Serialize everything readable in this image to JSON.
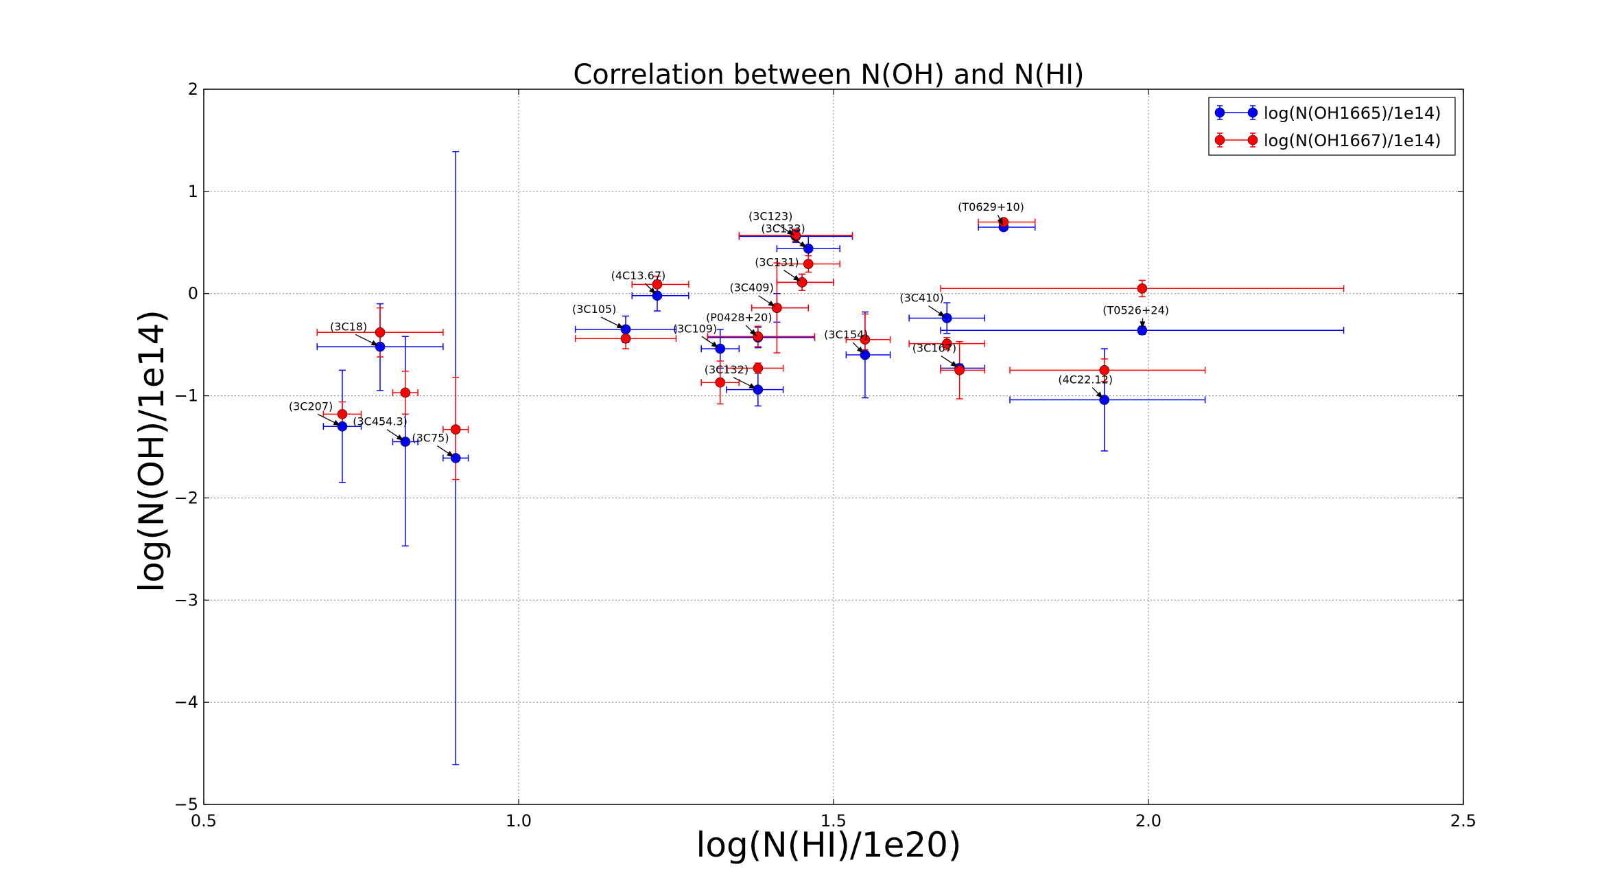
{
  "chart_data": {
    "type": "scatter",
    "title": "Correlation between N(OH) and N(HI)",
    "xlabel": "log(N(HI)/1e20)",
    "ylabel": "log(N(OH)/1e14)",
    "xlim": [
      0.5,
      2.5
    ],
    "ylim": [
      -5,
      2
    ],
    "xticks": [
      0.5,
      1.0,
      1.5,
      2.0,
      2.5
    ],
    "xtick_labels": [
      "0.5",
      "1.0",
      "1.5",
      "2.0",
      "2.5"
    ],
    "yticks": [
      2,
      1,
      0,
      -1,
      -2,
      -3,
      -4,
      -5
    ],
    "ytick_labels": [
      "2",
      "1",
      "0",
      "−1",
      "−2",
      "−3",
      "−4",
      "−5"
    ],
    "grid": true,
    "legend_position": "top-right",
    "series": [
      {
        "name": "log(N(OH1665)/1e14)",
        "color": "#0000ff",
        "points": [
          {
            "x": 0.72,
            "y": -1.3,
            "xlo": 0.69,
            "xhi": 0.75,
            "ylo": -1.85,
            "yhi": -0.75
          },
          {
            "x": 0.78,
            "y": -0.52,
            "xlo": 0.68,
            "xhi": 0.88,
            "ylo": -0.95,
            "yhi": -0.1
          },
          {
            "x": 0.82,
            "y": -1.45,
            "xlo": 0.8,
            "xhi": 0.84,
            "ylo": -2.47,
            "yhi": -0.42
          },
          {
            "x": 0.9,
            "y": -1.61,
            "xlo": 0.88,
            "xhi": 0.92,
            "ylo": -4.61,
            "yhi": 1.39
          },
          {
            "x": 1.17,
            "y": -0.35,
            "xlo": 1.09,
            "xhi": 1.25,
            "ylo": -0.48,
            "yhi": -0.22
          },
          {
            "x": 1.22,
            "y": -0.02,
            "xlo": 1.18,
            "xhi": 1.27,
            "ylo": -0.17,
            "yhi": 0.13
          },
          {
            "x": 1.32,
            "y": -0.54,
            "xlo": 1.29,
            "xhi": 1.35,
            "ylo": -0.73,
            "yhi": -0.35
          },
          {
            "x": 1.38,
            "y": -0.43,
            "xlo": 1.3,
            "xhi": 1.47,
            "ylo": -0.53,
            "yhi": -0.33
          },
          {
            "x": 1.38,
            "y": -0.94,
            "xlo": 1.33,
            "xhi": 1.42,
            "ylo": -1.1,
            "yhi": -0.78
          },
          {
            "x": 1.41,
            "y": -0.14,
            "xlo": 1.37,
            "xhi": 1.46,
            "ylo": -0.28,
            "yhi": 0.0
          },
          {
            "x": 1.45,
            "y": 0.11,
            "xlo": 1.41,
            "xhi": 1.5,
            "ylo": 0.03,
            "yhi": 0.19
          },
          {
            "x": 1.44,
            "y": 0.56,
            "xlo": 1.35,
            "xhi": 1.53,
            "ylo": 0.5,
            "yhi": 0.62
          },
          {
            "x": 1.46,
            "y": 0.44,
            "xlo": 1.41,
            "xhi": 1.51,
            "ylo": 0.31,
            "yhi": 0.57
          },
          {
            "x": 1.55,
            "y": -0.6,
            "xlo": 1.52,
            "xhi": 1.59,
            "ylo": -1.02,
            "yhi": -0.18
          },
          {
            "x": 1.68,
            "y": -0.24,
            "xlo": 1.62,
            "xhi": 1.74,
            "ylo": -0.39,
            "yhi": -0.09
          },
          {
            "x": 1.7,
            "y": -0.73,
            "xlo": 1.67,
            "xhi": 1.74,
            "ylo": -0.77,
            "yhi": -0.69
          },
          {
            "x": 1.77,
            "y": 0.65,
            "xlo": 1.73,
            "xhi": 1.82,
            "ylo": 0.62,
            "yhi": 0.68
          },
          {
            "x": 1.93,
            "y": -1.04,
            "xlo": 1.78,
            "xhi": 2.09,
            "ylo": -1.54,
            "yhi": -0.54
          },
          {
            "x": 1.99,
            "y": -0.36,
            "xlo": 1.67,
            "xhi": 2.31,
            "ylo": -0.4,
            "yhi": -0.32
          }
        ]
      },
      {
        "name": "log(N(OH1667)/1e14)",
        "color": "#ff0000",
        "points": [
          {
            "x": 0.72,
            "y": -1.18,
            "xlo": 0.69,
            "xhi": 0.75,
            "ylo": -1.3,
            "yhi": -1.06
          },
          {
            "x": 0.78,
            "y": -0.38,
            "xlo": 0.68,
            "xhi": 0.88,
            "ylo": -0.62,
            "yhi": -0.14
          },
          {
            "x": 0.82,
            "y": -0.97,
            "xlo": 0.8,
            "xhi": 0.84,
            "ylo": -1.18,
            "yhi": -0.76
          },
          {
            "x": 0.9,
            "y": -1.33,
            "xlo": 0.88,
            "xhi": 0.92,
            "ylo": -1.82,
            "yhi": -0.82
          },
          {
            "x": 1.17,
            "y": -0.44,
            "xlo": 1.09,
            "xhi": 1.25,
            "ylo": -0.54,
            "yhi": -0.34
          },
          {
            "x": 1.22,
            "y": 0.09,
            "xlo": 1.18,
            "xhi": 1.27,
            "ylo": 0.01,
            "yhi": 0.17
          },
          {
            "x": 1.32,
            "y": -0.87,
            "xlo": 1.29,
            "xhi": 1.35,
            "ylo": -1.08,
            "yhi": -0.66
          },
          {
            "x": 1.38,
            "y": -0.42,
            "xlo": 1.3,
            "xhi": 1.47,
            "ylo": -0.52,
            "yhi": -0.32
          },
          {
            "x": 1.38,
            "y": -0.73,
            "xlo": 1.33,
            "xhi": 1.42,
            "ylo": -0.78,
            "yhi": -0.68
          },
          {
            "x": 1.41,
            "y": -0.14,
            "xlo": 1.37,
            "xhi": 1.46,
            "ylo": -0.58,
            "yhi": 0.3
          },
          {
            "x": 1.45,
            "y": 0.11,
            "xlo": 1.41,
            "xhi": 1.5,
            "ylo": 0.03,
            "yhi": 0.19
          },
          {
            "x": 1.44,
            "y": 0.57,
            "xlo": 1.35,
            "xhi": 1.53,
            "ylo": 0.51,
            "yhi": 0.63
          },
          {
            "x": 1.46,
            "y": 0.29,
            "xlo": 1.41,
            "xhi": 1.51,
            "ylo": 0.21,
            "yhi": 0.37
          },
          {
            "x": 1.55,
            "y": -0.45,
            "xlo": 1.52,
            "xhi": 1.59,
            "ylo": -0.55,
            "yhi": -0.2
          },
          {
            "x": 1.68,
            "y": -0.49,
            "xlo": 1.62,
            "xhi": 1.74,
            "ylo": -0.55,
            "yhi": -0.43
          },
          {
            "x": 1.7,
            "y": -0.75,
            "xlo": 1.67,
            "xhi": 1.74,
            "ylo": -1.03,
            "yhi": -0.47
          },
          {
            "x": 1.77,
            "y": 0.7,
            "xlo": 1.73,
            "xhi": 1.82,
            "ylo": 0.67,
            "yhi": 0.73
          },
          {
            "x": 1.93,
            "y": -0.75,
            "xlo": 1.78,
            "xhi": 2.09,
            "ylo": -0.86,
            "yhi": -0.64
          },
          {
            "x": 1.99,
            "y": 0.05,
            "xlo": 1.67,
            "xhi": 2.31,
            "ylo": -0.03,
            "yhi": 0.13
          }
        ]
      }
    ],
    "annotations": [
      {
        "text": "(3C207)",
        "x": 0.72,
        "y": -1.3,
        "tx": 0.67,
        "ty": -1.14
      },
      {
        "text": "(3C18)",
        "x": 0.78,
        "y": -0.52,
        "tx": 0.73,
        "ty": -0.36
      },
      {
        "text": "(3C454.3)",
        "x": 0.82,
        "y": -1.45,
        "tx": 0.78,
        "ty": -1.29
      },
      {
        "text": "(3C75)",
        "x": 0.9,
        "y": -1.61,
        "tx": 0.86,
        "ty": -1.45
      },
      {
        "text": "(3C105)",
        "x": 1.17,
        "y": -0.35,
        "tx": 1.12,
        "ty": -0.19
      },
      {
        "text": "(4C13.67)",
        "x": 1.22,
        "y": -0.02,
        "tx": 1.19,
        "ty": 0.14
      },
      {
        "text": "(3C109)",
        "x": 1.32,
        "y": -0.54,
        "tx": 1.28,
        "ty": -0.38
      },
      {
        "text": "(P0428+20)",
        "x": 1.38,
        "y": -0.43,
        "tx": 1.35,
        "ty": -0.27
      },
      {
        "text": "(3C132)",
        "x": 1.38,
        "y": -0.94,
        "tx": 1.33,
        "ty": -0.78
      },
      {
        "text": "(3C409)",
        "x": 1.41,
        "y": -0.14,
        "tx": 1.37,
        "ty": 0.02
      },
      {
        "text": "(3C131)",
        "x": 1.45,
        "y": 0.11,
        "tx": 1.41,
        "ty": 0.27
      },
      {
        "text": "(3C123)",
        "x": 1.44,
        "y": 0.56,
        "tx": 1.4,
        "ty": 0.72
      },
      {
        "text": "(3C133)",
        "x": 1.46,
        "y": 0.44,
        "tx": 1.42,
        "ty": 0.6
      },
      {
        "text": "(3C154)",
        "x": 1.55,
        "y": -0.6,
        "tx": 1.52,
        "ty": -0.44
      },
      {
        "text": "(3C410)",
        "x": 1.68,
        "y": -0.24,
        "tx": 1.64,
        "ty": -0.08
      },
      {
        "text": "(3C167)",
        "x": 1.7,
        "y": -0.73,
        "tx": 1.66,
        "ty": -0.57
      },
      {
        "text": "(T0629+10)",
        "x": 1.77,
        "y": 0.65,
        "tx": 1.75,
        "ty": 0.81
      },
      {
        "text": "(4C22.12)",
        "x": 1.93,
        "y": -1.04,
        "tx": 1.9,
        "ty": -0.88
      },
      {
        "text": "(T0526+24)",
        "x": 1.99,
        "y": -0.36,
        "tx": 1.98,
        "ty": -0.2
      }
    ]
  }
}
